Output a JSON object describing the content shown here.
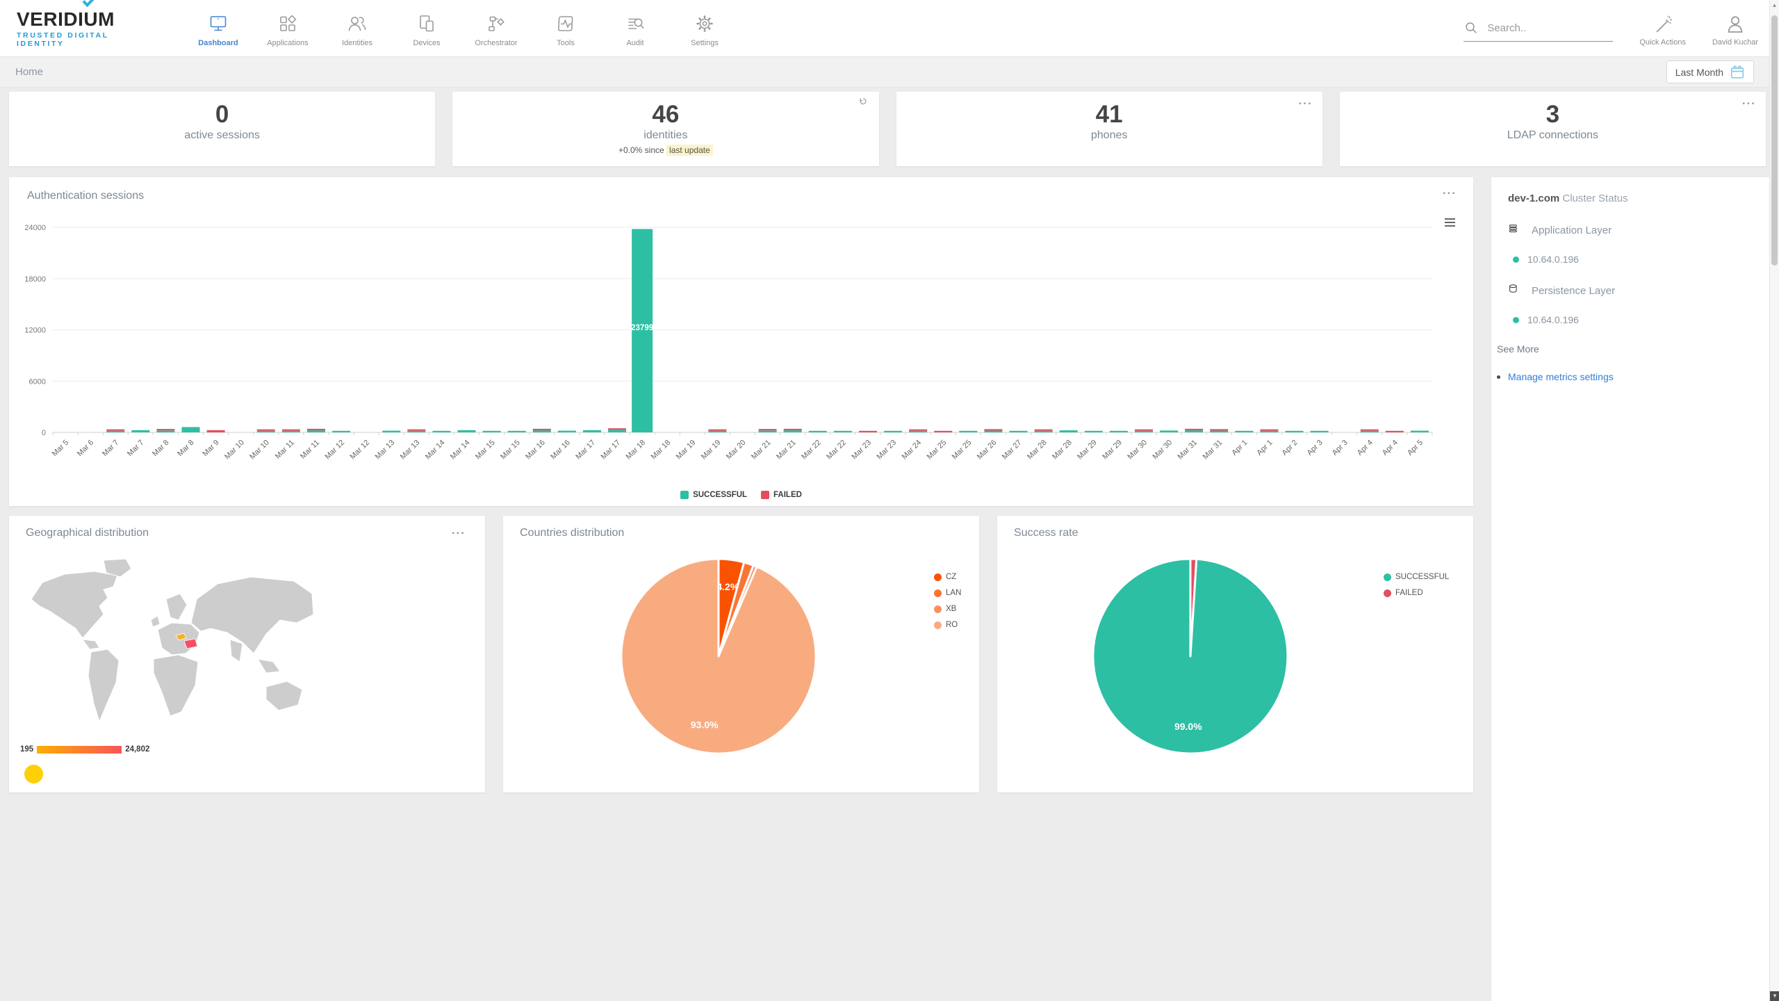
{
  "navbar": {
    "logo": {
      "brand": "VERIDIUM",
      "tagline": "TRUSTED DIGITAL IDENTITY"
    },
    "items": [
      {
        "label": "Dashboard",
        "icon": "monitor-icon",
        "active": true
      },
      {
        "label": "Applications",
        "icon": "apps-grid-icon",
        "active": false
      },
      {
        "label": "Identities",
        "icon": "people-icon",
        "active": false
      },
      {
        "label": "Devices",
        "icon": "devices-icon",
        "active": false
      },
      {
        "label": "Orchestrator",
        "icon": "flowchart-icon",
        "active": false
      },
      {
        "label": "Tools",
        "icon": "pulse-card-icon",
        "active": false
      },
      {
        "label": "Audit",
        "icon": "list-search-icon",
        "active": false
      },
      {
        "label": "Settings",
        "icon": "gear-icon",
        "active": false
      }
    ],
    "search": {
      "placeholder": "Search.."
    },
    "quick_actions_label": "Quick Actions",
    "user_name": "David Kuchar"
  },
  "breadcrumb": {
    "home": "Home"
  },
  "date_filter": {
    "label": "Last Month",
    "icon": "calendar-icon"
  },
  "stat_cards": [
    {
      "value": "0",
      "label": "active sessions",
      "corner": null
    },
    {
      "value": "46",
      "label": "identities",
      "corner": "refresh-icon",
      "delta_prefix": "+0.0% since",
      "delta_highlight": "last update"
    },
    {
      "value": "41",
      "label": "phones",
      "corner": "menu-dots"
    },
    {
      "value": "3",
      "label": "LDAP connections",
      "corner": "menu-dots"
    }
  ],
  "chart_data": [
    {
      "id": "auth_sessions",
      "type": "bar",
      "stacked": true,
      "title": "Authentication sessions",
      "ylim": [
        0,
        24000
      ],
      "yticks": [
        0,
        6000,
        12000,
        18000,
        24000
      ],
      "grid": true,
      "legend_position": "bottom",
      "categories": [
        "Mar 5",
        "Mar 6",
        "Mar 7",
        "Mar 7",
        "Mar 8",
        "Mar 8",
        "Mar 9",
        "Mar 10",
        "Mar 10",
        "Mar 11",
        "Mar 11",
        "Mar 12",
        "Mar 12",
        "Mar 13",
        "Mar 13",
        "Mar 14",
        "Mar 14",
        "Mar 15",
        "Mar 15",
        "Mar 16",
        "Mar 16",
        "Mar 17",
        "Mar 17",
        "Mar 18",
        "Mar 18",
        "Mar 19",
        "Mar 19",
        "Mar 20",
        "Mar 21",
        "Mar 21",
        "Mar 22",
        "Mar 22",
        "Mar 23",
        "Mar 23",
        "Mar 24",
        "Mar 25",
        "Mar 25",
        "Mar 26",
        "Mar 27",
        "Mar 28",
        "Mar 28",
        "Mar 29",
        "Mar 29",
        "Mar 30",
        "Mar 30",
        "Mar 31",
        "Mar 31",
        "Apr 1",
        "Apr 1",
        "Apr 2",
        "Apr 3",
        "Apr 3",
        "Apr 4",
        "Apr 4",
        "Apr 5"
      ],
      "series": [
        {
          "name": "SUCCESSFUL",
          "color": "#2dbfa4",
          "values": [
            0,
            0,
            180,
            260,
            220,
            620,
            0,
            0,
            140,
            60,
            240,
            120,
            0,
            200,
            60,
            160,
            260,
            180,
            140,
            240,
            200,
            260,
            300,
            23799,
            0,
            0,
            160,
            0,
            220,
            240,
            120,
            160,
            0,
            140,
            120,
            0,
            140,
            200,
            160,
            120,
            240,
            180,
            60,
            120,
            220,
            240,
            200,
            180,
            160,
            140,
            120,
            0,
            160,
            0,
            200
          ]
        },
        {
          "name": "FAILED",
          "color": "#e14f5e",
          "values": [
            0,
            0,
            60,
            0,
            40,
            0,
            260,
            0,
            60,
            160,
            80,
            0,
            0,
            0,
            120,
            0,
            0,
            0,
            0,
            60,
            0,
            0,
            60,
            0,
            0,
            0,
            60,
            0,
            60,
            100,
            0,
            0,
            100,
            0,
            60,
            120,
            0,
            80,
            0,
            60,
            0,
            0,
            0,
            80,
            0,
            60,
            100,
            0,
            60,
            0,
            0,
            0,
            60,
            140,
            0
          ]
        }
      ],
      "bar_labels": [
        {
          "category_index": 23,
          "text": "23799"
        }
      ],
      "legend": [
        {
          "label": "SUCCESSFUL",
          "color": "#2dbfa4"
        },
        {
          "label": "FAILED",
          "color": "#e14f5e"
        }
      ]
    },
    {
      "id": "countries",
      "type": "pie",
      "title": "Countries distribution",
      "legend_position": "right",
      "slices": [
        {
          "label": "CZ",
          "value": 4.2,
          "display": "4.2%",
          "color": "#f95301",
          "show_label": true
        },
        {
          "label": "LAN",
          "value": 1.6,
          "display": "",
          "color": "#fb7434",
          "show_label": false
        },
        {
          "label": "XB",
          "value": 0.6,
          "display": "",
          "color": "#fa9160",
          "show_label": false
        },
        {
          "label": "RO",
          "value": 93.0,
          "display": "93.0%",
          "color": "#f9ab80",
          "show_label": true
        }
      ],
      "legend": [
        {
          "label": "CZ",
          "color": "#f95301"
        },
        {
          "label": "LAN",
          "color": "#fb7434"
        },
        {
          "label": "XB",
          "color": "#fa9160"
        },
        {
          "label": "RO",
          "color": "#f9ab80"
        }
      ]
    },
    {
      "id": "success_rate",
      "type": "pie",
      "title": "Success rate",
      "legend_position": "right",
      "slices": [
        {
          "label": "FAILED",
          "value": 1.0,
          "display": "",
          "color": "#e14f5e",
          "show_label": false
        },
        {
          "label": "SUCCESSFUL",
          "value": 99.0,
          "display": "99.0%",
          "color": "#2dbfa4",
          "show_label": true
        }
      ],
      "legend": [
        {
          "label": "SUCCESSFUL",
          "color": "#2dbfa4"
        },
        {
          "label": "FAILED",
          "color": "#e14f5e"
        }
      ]
    }
  ],
  "geo_panel": {
    "title": "Geographical distribution",
    "scale_min": "195",
    "scale_max": "24,802",
    "regions": {
      "cz_color": "#f3b229",
      "ro_color": "#fb4d63"
    },
    "marker_color": "#fdd008"
  },
  "cluster_panel": {
    "host": "dev-1.com",
    "title_rest": "Cluster Status",
    "sections": [
      {
        "icon": "layers-icon",
        "label": "Application Layer",
        "nodes": [
          {
            "ip": "10.64.0.196",
            "status_color": "#2dbfa4"
          }
        ]
      },
      {
        "icon": "database-icon",
        "label": "Persistence Layer",
        "nodes": [
          {
            "ip": "10.64.0.196",
            "status_color": "#2dbfa4"
          }
        ]
      }
    ],
    "see_more": "See More",
    "manage_link": "Manage metrics settings"
  },
  "colors": {
    "accent_blue": "#4486cf",
    "teal": "#2dbfa4",
    "red": "#e14f5e",
    "link_blue": "#2e7fd6",
    "highlight_yellow": "#fbf3cd"
  }
}
